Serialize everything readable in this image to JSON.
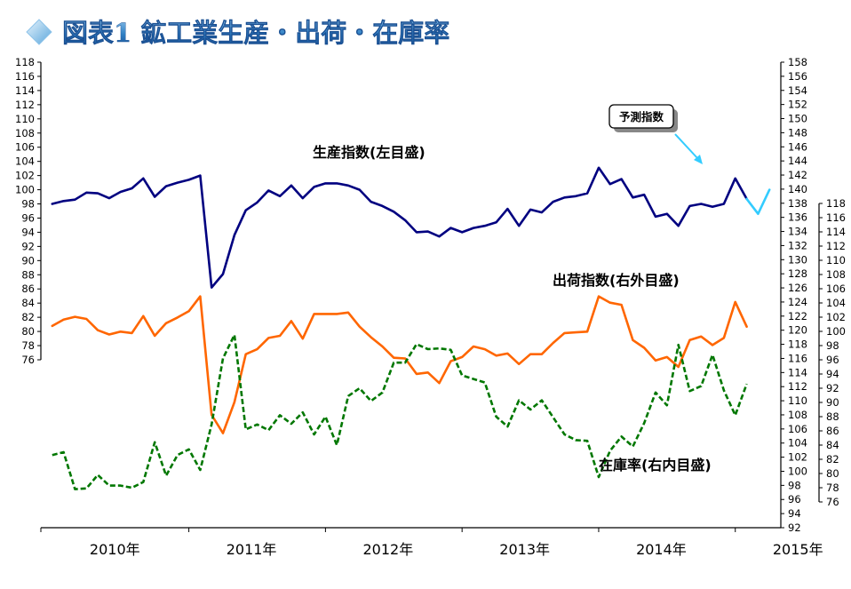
{
  "chart_data": {
    "type": "line",
    "title": "図表1 鉱工業生産・出荷・在庫率",
    "x_tick_labels": [
      "2010年",
      "2011年",
      "2012年",
      "2013年",
      "2014年",
      "2015年"
    ],
    "x_range": [
      "2009-12",
      "2015-05"
    ],
    "axes": {
      "left": {
        "ylim": [
          76,
          118
        ],
        "tick_step": 2,
        "series": "生産指数(左目盛)"
      },
      "right_outer": {
        "ylim": [
          92,
          158
        ],
        "tick_step": 2,
        "series": "出荷指数(右外目盛)"
      },
      "right_inner": {
        "ylim": [
          76,
          118
        ],
        "tick_step": 2,
        "series": "在庫率(右内目盛)"
      }
    },
    "series": [
      {
        "name": "生産指数(左目盛)",
        "label": "生産指数(左目盛)",
        "axis": "left",
        "color": "#000080",
        "dash": "solid",
        "start": "2010-01",
        "values": [
          98.0,
          98.4,
          98.6,
          99.6,
          99.5,
          98.8,
          99.7,
          100.2,
          101.6,
          99.0,
          100.5,
          101.0,
          101.4,
          102.0,
          86.2,
          88.1,
          93.6,
          97.1,
          98.2,
          99.9,
          99.1,
          100.6,
          98.8,
          100.4,
          100.9,
          100.9,
          100.6,
          100.0,
          98.3,
          97.7,
          96.9,
          95.7,
          94.0,
          94.1,
          93.4,
          94.6,
          94.0,
          94.6,
          94.9,
          95.4,
          97.3,
          94.9,
          97.2,
          96.8,
          98.3,
          98.9,
          99.1,
          99.5,
          103.1,
          100.8,
          101.5,
          98.9,
          99.3,
          96.2,
          96.6,
          94.9,
          97.7,
          98.0,
          97.6,
          98.0,
          101.6,
          98.7
        ]
      },
      {
        "name": "予測指数",
        "label": "予測指数",
        "axis": "left",
        "color": "#33ccff",
        "dash": "solid",
        "start": "2015-02",
        "values": [
          98.7,
          96.6,
          100.0
        ]
      },
      {
        "name": "出荷指数(右外目盛)",
        "label": "出荷指数(右外目盛)",
        "axis": "right_outer",
        "color": "#ff6600",
        "dash": "solid",
        "start": "2010-01",
        "values": [
          120.6,
          121.5,
          121.9,
          121.6,
          120.0,
          119.4,
          119.8,
          119.6,
          122.0,
          119.2,
          121.0,
          121.8,
          122.7,
          124.8,
          108.0,
          105.4,
          109.8,
          116.6,
          117.3,
          118.9,
          119.2,
          121.3,
          118.8,
          122.3,
          122.3,
          122.3,
          122.5,
          120.5,
          119.0,
          117.7,
          116.1,
          116.0,
          113.8,
          114.0,
          112.5,
          115.6,
          116.2,
          117.7,
          117.3,
          116.4,
          116.7,
          115.2,
          116.6,
          116.6,
          118.2,
          119.6,
          119.7,
          119.8,
          124.8,
          123.9,
          123.6,
          118.6,
          117.5,
          115.7,
          116.2,
          114.8,
          118.6,
          119.1,
          117.9,
          118.9,
          124.0,
          120.5
        ]
      },
      {
        "name": "在庫率(右内目盛)",
        "label": "在庫率(右内目盛)",
        "axis": "right_inner",
        "color": "#007700",
        "dash": "dashed",
        "start": "2010-01",
        "values": [
          82.6,
          83.0,
          77.8,
          77.9,
          79.8,
          78.3,
          78.3,
          78.0,
          78.8,
          84.4,
          79.7,
          82.6,
          83.4,
          80.5,
          86.9,
          96.2,
          99.5,
          86.2,
          86.9,
          86.1,
          88.2,
          87.0,
          88.6,
          85.5,
          88.0,
          84.0,
          90.9,
          92.0,
          90.2,
          91.4,
          95.6,
          95.6,
          98.2,
          97.5,
          97.6,
          97.4,
          93.8,
          93.3,
          92.8,
          88.0,
          86.6,
          90.3,
          89.0,
          90.3,
          87.9,
          85.5,
          84.7,
          84.6,
          79.5,
          83.2,
          85.2,
          83.8,
          87.1,
          91.4,
          89.6,
          98.1,
          91.6,
          92.3,
          96.7,
          91.7,
          88.2,
          92.6
        ]
      }
    ],
    "annotations": [
      {
        "text": "生産指数(左目盛)",
        "series": "生産指数(左目盛)"
      },
      {
        "text": "出荷指数(右外目盛)",
        "series": "出荷指数(右外目盛)"
      },
      {
        "text": "在庫率(右内目盛)",
        "series": "在庫率(右内目盛)"
      },
      {
        "text": "予測指数",
        "series": "予測指数",
        "style": "callout"
      }
    ],
    "grid": false,
    "legend": "none"
  }
}
